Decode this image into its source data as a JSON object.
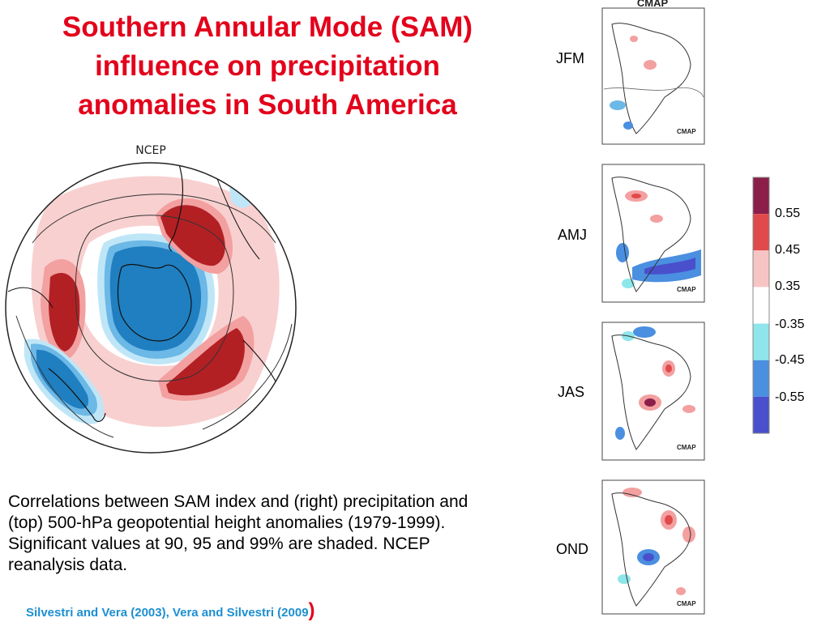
{
  "title": {
    "line1": "Southern Annular Mode (SAM)",
    "line2": "influence on precipitation",
    "line3": "anomalies in South America"
  },
  "polar_map": {
    "label": "NCEP"
  },
  "caption": "Correlations between SAM index and (right) precipitation and (top) 500-hPa geopotential height anomalies (1979-1999). Significant values at 90, 95 and 99% are shaded. NCEP reanalysis data.",
  "references": {
    "text": "Silvestri and Vera (2003), Vera and Silvestri (2009",
    "close": ")"
  },
  "seasons": [
    {
      "label": "JFM",
      "header": "CMAP",
      "dataset": "CMAP"
    },
    {
      "label": "AMJ",
      "dataset": "CMAP"
    },
    {
      "label": "JAS",
      "dataset": "CMAP"
    },
    {
      "label": "OND",
      "dataset": "CMAP"
    }
  ],
  "colorbar": {
    "ticks": [
      "0.55",
      "0.45",
      "0.35",
      "-0.35",
      "-0.45",
      "-0.55"
    ],
    "colors": [
      "#8b1f4a",
      "#e04a4a",
      "#f7c4c4",
      "#ffffff",
      "#8ee6ea",
      "#4a8fe0",
      "#4a4fcc"
    ]
  },
  "colors": {
    "positive": "#b22024",
    "negative": "#1f7fc0",
    "title": "#e3001b",
    "reference": "#1d8fd0"
  }
}
